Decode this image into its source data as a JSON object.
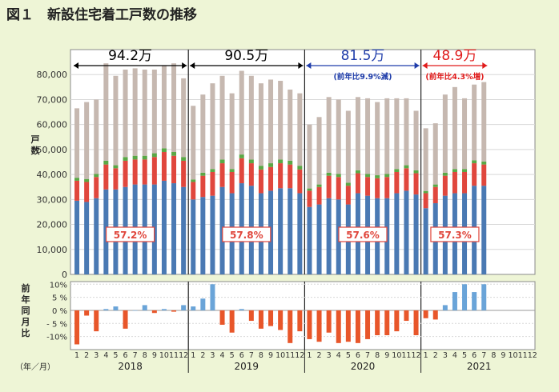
{
  "figure": {
    "title": "図１　新設住宅着工戸数の推移"
  },
  "chart_data": [
    {
      "type": "bar",
      "subtype": "stacked",
      "ylabel": "戸数",
      "ylim": [
        0,
        90000
      ],
      "yticks": [
        "0",
        "10,000",
        "20,000",
        "30,000",
        "40,000",
        "50,000",
        "60,000",
        "70,000",
        "80,000"
      ],
      "grid": true,
      "colors": {
        "blue": "#4a79b3",
        "red": "#e0473d",
        "green": "#5aa845",
        "gray": "#c6b8b0"
      },
      "series_notes": [
        "blue segment",
        "red segment",
        "green segment",
        "gray segment (top = monthly total)"
      ],
      "blue": [
        29500,
        29000,
        30500,
        34000,
        34000,
        35000,
        36000,
        36000,
        36000,
        37500,
        36500,
        35000,
        30000,
        31000,
        31500,
        35000,
        32500,
        36500,
        35500,
        32500,
        33500,
        34500,
        34500,
        32500,
        27000,
        28000,
        30500,
        30000,
        28000,
        32500,
        31500,
        30500,
        30500,
        32500,
        33500,
        32000,
        26500,
        28500,
        31500,
        32500,
        32500,
        35500,
        35500
      ],
      "red": [
        8000,
        8000,
        8500,
        10000,
        8500,
        10500,
        10000,
        10000,
        11000,
        11500,
        11000,
        10500,
        7000,
        8500,
        9500,
        9500,
        8500,
        10000,
        9000,
        9500,
        9500,
        10000,
        9500,
        9500,
        6500,
        7000,
        9000,
        9000,
        7500,
        8000,
        7500,
        8000,
        8500,
        8500,
        9000,
        8500,
        6000,
        6500,
        8000,
        8500,
        8500,
        9000,
        8500
      ],
      "green": [
        1200,
        1200,
        1200,
        1500,
        1200,
        1500,
        1500,
        1500,
        1500,
        1500,
        1500,
        1500,
        1000,
        1200,
        1200,
        1500,
        1200,
        1500,
        1500,
        1500,
        1500,
        1500,
        1500,
        1500,
        900,
        1000,
        1200,
        1200,
        1200,
        1200,
        1200,
        1200,
        1200,
        1200,
        1200,
        1200,
        900,
        1000,
        1200,
        1200,
        1200,
        1200,
        1200
      ],
      "totals": [
        66500,
        69000,
        70000,
        84500,
        79500,
        82000,
        82500,
        82000,
        82000,
        83500,
        84500,
        78500,
        67500,
        72000,
        76500,
        79500,
        72500,
        81500,
        79500,
        76500,
        78000,
        77500,
        74000,
        72500,
        60000,
        63000,
        71000,
        70000,
        65500,
        71000,
        70500,
        69000,
        70500,
        70500,
        70500,
        65500,
        58500,
        60500,
        72000,
        75000,
        70500,
        76000,
        77000
      ],
      "annual_totals": [
        "94.2万",
        "90.5万",
        "81.5万",
        "48.9万"
      ],
      "annual_change": [
        "",
        "",
        "(前年比9.9%減)",
        "(前年比4.3%増)"
      ],
      "annual_label_colors": [
        "#000000",
        "#000000",
        "#1e3caa",
        "#e01b1b"
      ],
      "share_labels": [
        "57.2%",
        "57.8%",
        "57.6%",
        "57.3%"
      ]
    },
    {
      "type": "bar",
      "subtype": "yoy_change",
      "ylabel": "前年同月比",
      "ylim": [
        -15,
        11
      ],
      "yticks": [
        "10%",
        "5 %",
        "0 %",
        "- 5 %",
        "-10%"
      ],
      "grid": true,
      "colors": {
        "positive": "#6aa4d8",
        "negative": "#e8562a"
      },
      "values": [
        -13,
        -2,
        -8,
        0.5,
        1.5,
        -7,
        0,
        2,
        -1,
        0.5,
        -0.5,
        2,
        1.5,
        4.5,
        10,
        -5.5,
        -8.5,
        0.5,
        -4,
        -7,
        -6,
        -7.5,
        -12.5,
        -8,
        -11,
        -12,
        -8.5,
        -12.5,
        -12,
        -12.5,
        -11,
        -9.5,
        -9.5,
        -8,
        -4,
        -9.5,
        -3,
        -3.5,
        2,
        7,
        10,
        7,
        10
      ],
      "xlabel": "（年／月）",
      "month_labels": [
        "1",
        "2",
        "3",
        "4",
        "5",
        "6",
        "7",
        "8",
        "9",
        "10",
        "11",
        "12"
      ],
      "years": [
        "2018",
        "2019",
        "2020",
        "2021"
      ]
    }
  ]
}
